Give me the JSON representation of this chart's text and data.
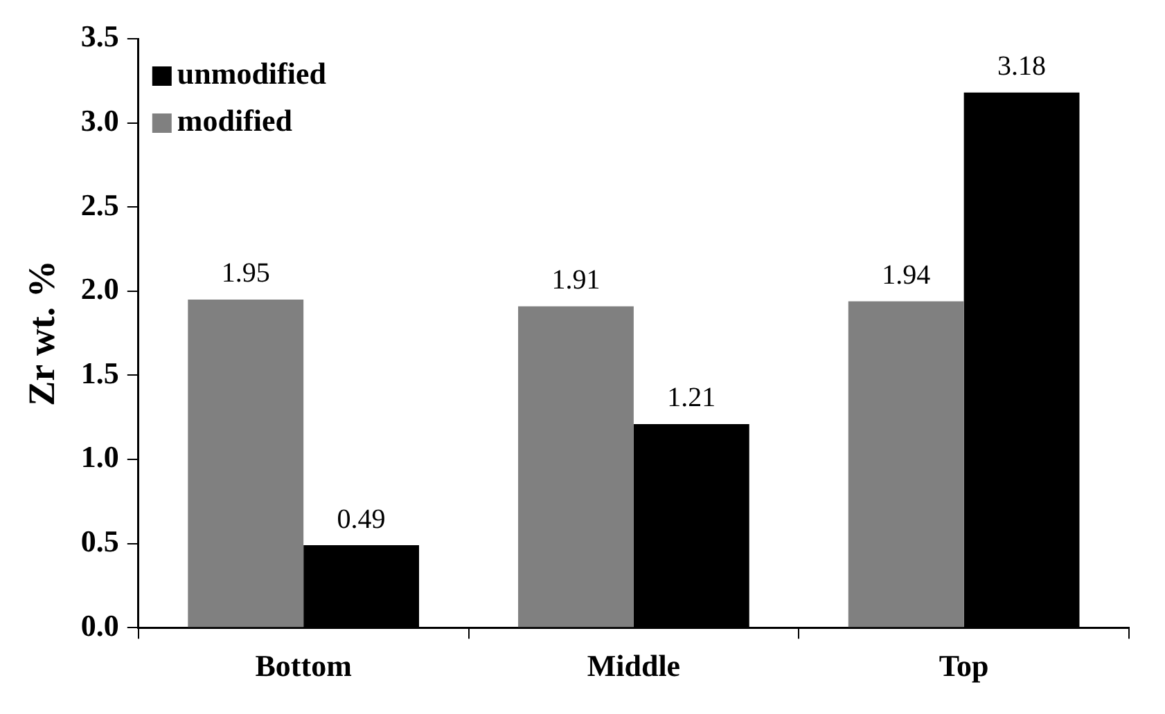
{
  "chart_data": {
    "type": "bar",
    "ylabel": "Zr wt. %",
    "categories": [
      "Bottom",
      "Middle",
      "Top"
    ],
    "series": [
      {
        "name": "modified",
        "color": "#808080",
        "values": [
          1.95,
          1.91,
          1.94
        ]
      },
      {
        "name": "unmodified",
        "color": "#000000",
        "values": [
          0.49,
          1.21,
          3.18
        ]
      }
    ],
    "ylim": [
      0,
      3.5
    ],
    "yticks": [
      {
        "value": 0,
        "label": "0.0"
      },
      {
        "value": 0.5,
        "label": "0.5"
      },
      {
        "value": 1,
        "label": "1.0"
      },
      {
        "value": 1.5,
        "label": "1.5"
      },
      {
        "value": 2,
        "label": "2.0"
      },
      {
        "value": 2.5,
        "label": "2.5"
      },
      {
        "value": 3,
        "label": "3.0"
      },
      {
        "value": 3.5,
        "label": "3.5"
      }
    ],
    "grid": false,
    "legend": "top left",
    "data_labels": true
  }
}
